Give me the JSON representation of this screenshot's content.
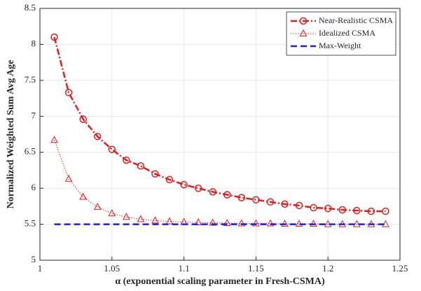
{
  "chart_data": {
    "type": "line",
    "xlabel": "α (exponential scaling parameter in Fresh-CSMA)",
    "ylabel": "Normalized Weighted Sum Avg Age",
    "x": [
      1.01,
      1.02,
      1.03,
      1.04,
      1.05,
      1.06,
      1.07,
      1.08,
      1.09,
      1.1,
      1.11,
      1.12,
      1.13,
      1.14,
      1.15,
      1.16,
      1.17,
      1.18,
      1.19,
      1.2,
      1.21,
      1.22,
      1.23,
      1.24
    ],
    "series": [
      {
        "name": "Near-Realistic CSMA",
        "color": "#e41a1c",
        "marker": "circle",
        "dash": "dashdot",
        "width": 2.5,
        "values": [
          8.1,
          7.33,
          6.96,
          6.72,
          6.54,
          6.39,
          6.31,
          6.2,
          6.12,
          6.05,
          6.0,
          5.95,
          5.91,
          5.87,
          5.84,
          5.81,
          5.78,
          5.76,
          5.73,
          5.72,
          5.7,
          5.69,
          5.68,
          5.68
        ]
      },
      {
        "name": "Idealized CSMA",
        "color": "#e41a1c",
        "marker": "triangle",
        "dash": "dotted",
        "width": 1,
        "values": [
          6.67,
          6.13,
          5.88,
          5.74,
          5.65,
          5.6,
          5.57,
          5.55,
          5.54,
          5.53,
          5.525,
          5.52,
          5.515,
          5.51,
          5.51,
          5.51,
          5.505,
          5.505,
          5.505,
          5.5,
          5.5,
          5.5,
          5.5,
          5.5
        ]
      },
      {
        "name": "Max-Weight",
        "color": "#1f1fd6",
        "marker": "none",
        "dash": "dashed",
        "width": 2.5,
        "values": [
          5.5,
          5.5,
          5.5,
          5.5,
          5.5,
          5.5,
          5.5,
          5.5,
          5.5,
          5.5,
          5.5,
          5.5,
          5.5,
          5.5,
          5.5,
          5.5,
          5.5,
          5.5,
          5.5,
          5.5,
          5.5,
          5.5,
          5.5,
          5.5
        ]
      }
    ],
    "xlim": [
      1,
      1.25
    ],
    "xticks": [
      1,
      1.05,
      1.1,
      1.15,
      1.2,
      1.25
    ],
    "ylim": [
      5,
      8.5
    ],
    "yticks": [
      5,
      5.5,
      6,
      6.5,
      7,
      7.5,
      8,
      8.5
    ],
    "grid": true,
    "legend": "upper right"
  }
}
